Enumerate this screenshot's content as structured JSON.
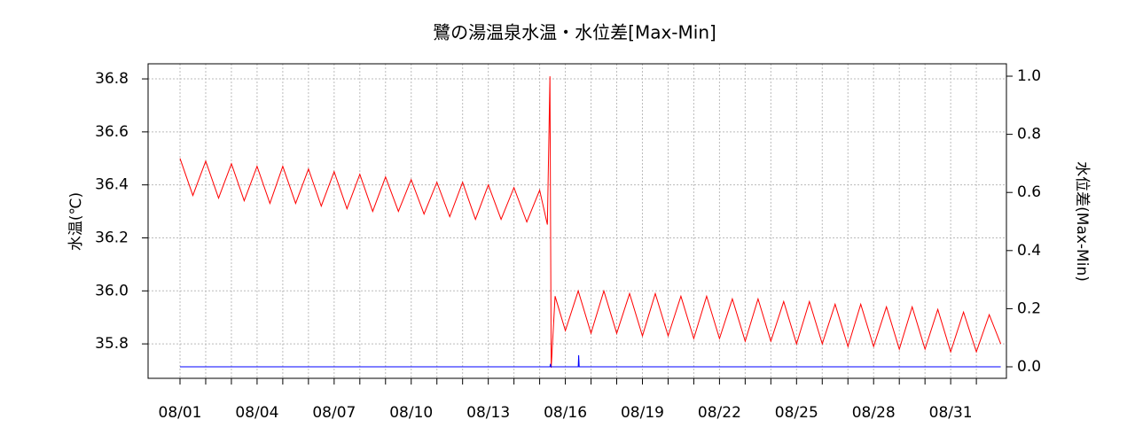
{
  "chart_data": {
    "type": "line",
    "title": "鷺の湯温泉水温・水位差[Max-Min]",
    "ylabel": "水温(℃)",
    "y2label": "水位差(Max-Min)",
    "xlim": [
      -1.243,
      32.17
    ],
    "ylim": [
      35.67,
      36.857
    ],
    "y2lim": [
      -0.0396,
      1.0427
    ],
    "xticks": [
      {
        "value": 0,
        "label": "08/01"
      },
      {
        "value": 3,
        "label": "08/04"
      },
      {
        "value": 6,
        "label": "08/07"
      },
      {
        "value": 9,
        "label": "08/10"
      },
      {
        "value": 12,
        "label": "08/13"
      },
      {
        "value": 15,
        "label": "08/16"
      },
      {
        "value": 18,
        "label": "08/19"
      },
      {
        "value": 21,
        "label": "08/22"
      },
      {
        "value": 24,
        "label": "08/25"
      },
      {
        "value": 27,
        "label": "08/28"
      },
      {
        "value": 30,
        "label": "08/31"
      }
    ],
    "xminor_ticks": [
      0,
      1,
      2,
      3,
      4,
      5,
      6,
      7,
      8,
      9,
      10,
      11,
      12,
      13,
      14,
      15,
      16,
      17,
      18,
      19,
      20,
      21,
      22,
      23,
      24,
      25,
      26,
      27,
      28,
      29,
      30,
      31
    ],
    "yticks": [
      35.8,
      {
        "value": 36.0,
        "label": "36.0"
      },
      36.2,
      36.4,
      36.6,
      36.8
    ],
    "y2ticks": [
      {
        "value": 0,
        "label": "0.0"
      },
      {
        "value": 0.2,
        "label": "0.2"
      },
      {
        "value": 0.4,
        "label": "0.4"
      },
      {
        "value": 0.6,
        "label": "0.6"
      },
      {
        "value": 0.8,
        "label": "0.8"
      },
      {
        "value": 1,
        "label": "1.0"
      }
    ],
    "grid": true,
    "series": [
      {
        "color": "#ff0000",
        "axis": "y",
        "x": [
          0,
          0.5,
          1,
          1.5,
          2,
          2.5,
          3,
          3.5,
          4,
          4.5,
          5,
          5.5,
          6,
          6.5,
          7,
          7.5,
          8,
          8.5,
          9,
          9.5,
          10,
          10.5,
          11,
          11.5,
          12,
          12.5,
          13,
          13.5,
          14,
          14.3,
          14.4,
          14.45,
          14.6,
          15,
          15.5,
          16,
          16.5,
          17,
          17.5,
          18,
          18.5,
          19,
          19.5,
          20,
          20.5,
          21,
          21.5,
          22,
          22.5,
          23,
          23.5,
          24,
          24.5,
          25,
          25.5,
          26,
          26.5,
          27,
          27.5,
          28,
          28.5,
          29,
          29.5,
          30,
          30.5,
          31,
          31.5,
          31.95
        ],
        "values": [
          36.5,
          36.36,
          36.49,
          36.35,
          36.48,
          36.34,
          36.47,
          36.33,
          36.47,
          36.33,
          36.46,
          36.32,
          36.45,
          36.31,
          36.44,
          36.3,
          36.43,
          36.3,
          36.42,
          36.29,
          36.41,
          36.28,
          36.41,
          36.27,
          36.4,
          36.27,
          36.39,
          36.26,
          36.38,
          36.25,
          36.81,
          35.71,
          35.98,
          35.85,
          36.0,
          35.84,
          36.0,
          35.84,
          35.99,
          35.83,
          35.99,
          35.83,
          35.98,
          35.82,
          35.98,
          35.82,
          35.97,
          35.81,
          35.97,
          35.81,
          35.96,
          35.8,
          35.96,
          35.8,
          35.95,
          35.79,
          35.95,
          35.79,
          35.94,
          35.78,
          35.94,
          35.78,
          35.93,
          35.77,
          35.92,
          35.77,
          35.91,
          35.8
        ]
      },
      {
        "color": "#0000ff",
        "axis": "y2",
        "x": [
          0,
          14.4,
          14.42,
          14.44,
          15.5,
          15.52,
          15.54,
          31.95
        ],
        "values": [
          0,
          0,
          0.01,
          0,
          0,
          0.04,
          0,
          0
        ]
      }
    ]
  }
}
